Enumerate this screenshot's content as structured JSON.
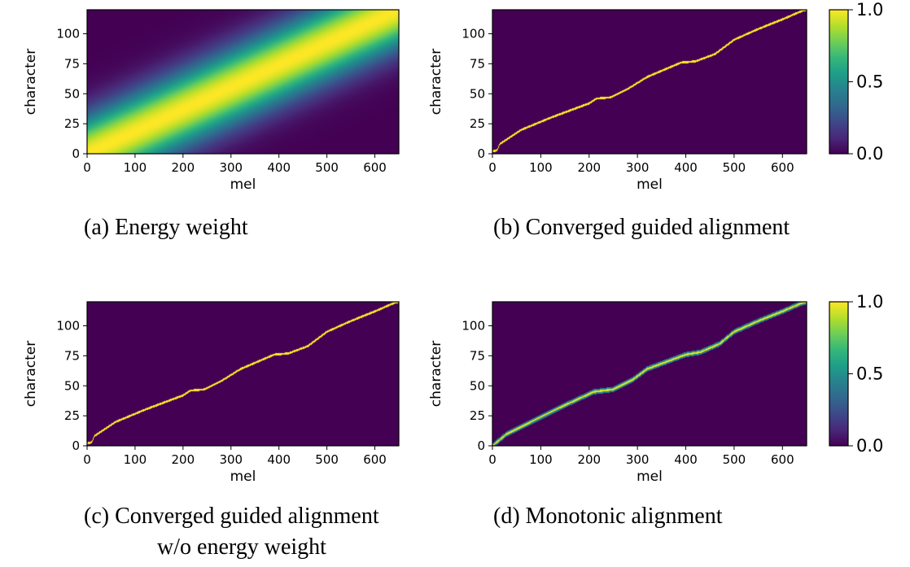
{
  "chart_data": [
    {
      "type": "heatmap",
      "id": "a",
      "caption": "(a) Energy weight",
      "caption_line2": "",
      "xlabel": "mel",
      "ylabel": "character",
      "xlim": [
        0,
        650
      ],
      "ylim": [
        0,
        120
      ],
      "xticks": [
        0,
        100,
        200,
        300,
        400,
        500,
        600
      ],
      "yticks": [
        0,
        25,
        50,
        75,
        100
      ],
      "pattern": "diagonal_band",
      "band_sigma_chars": 22,
      "value_range": [
        0.0,
        1.0
      ]
    },
    {
      "type": "heatmap",
      "id": "b",
      "caption": "(b) Converged guided alignment",
      "caption_line2": "",
      "xlabel": "mel",
      "ylabel": "character",
      "xlim": [
        0,
        650
      ],
      "ylim": [
        0,
        120
      ],
      "xticks": [
        0,
        100,
        200,
        300,
        400,
        500,
        600
      ],
      "yticks": [
        0,
        25,
        50,
        75,
        100
      ],
      "pattern": "alignment_path",
      "path": [
        [
          0,
          2
        ],
        [
          10,
          3
        ],
        [
          15,
          8
        ],
        [
          60,
          20
        ],
        [
          120,
          30
        ],
        [
          200,
          42
        ],
        [
          215,
          46
        ],
        [
          245,
          47
        ],
        [
          280,
          54
        ],
        [
          320,
          64
        ],
        [
          355,
          70
        ],
        [
          390,
          76
        ],
        [
          420,
          77
        ],
        [
          460,
          83
        ],
        [
          500,
          95
        ],
        [
          550,
          104
        ],
        [
          600,
          112
        ],
        [
          640,
          119
        ],
        [
          650,
          120
        ]
      ],
      "value_range": [
        0.0,
        1.0
      ]
    },
    {
      "type": "heatmap",
      "id": "c",
      "caption": "(c) Converged guided alignment",
      "caption_line2": "w/o energy weight",
      "xlabel": "mel",
      "ylabel": "character",
      "xlim": [
        0,
        650
      ],
      "ylim": [
        0,
        120
      ],
      "xticks": [
        0,
        100,
        200,
        300,
        400,
        500,
        600
      ],
      "yticks": [
        0,
        25,
        50,
        75,
        100
      ],
      "pattern": "alignment_path",
      "path": [
        [
          0,
          2
        ],
        [
          10,
          3
        ],
        [
          15,
          8
        ],
        [
          60,
          20
        ],
        [
          120,
          30
        ],
        [
          200,
          42
        ],
        [
          215,
          46
        ],
        [
          245,
          47
        ],
        [
          280,
          54
        ],
        [
          320,
          64
        ],
        [
          355,
          70
        ],
        [
          390,
          76
        ],
        [
          420,
          77
        ],
        [
          460,
          83
        ],
        [
          500,
          95
        ],
        [
          550,
          104
        ],
        [
          600,
          112
        ],
        [
          640,
          119
        ],
        [
          650,
          120
        ]
      ],
      "value_range": [
        0.0,
        1.0
      ]
    },
    {
      "type": "heatmap",
      "id": "d",
      "caption": "(d) Monotonic alignment",
      "caption_line2": "",
      "xlabel": "mel",
      "ylabel": "character",
      "xlim": [
        0,
        650
      ],
      "ylim": [
        0,
        120
      ],
      "xticks": [
        0,
        100,
        200,
        300,
        400,
        500,
        600
      ],
      "yticks": [
        0,
        25,
        50,
        75,
        100
      ],
      "pattern": "alignment_path_soft",
      "path": [
        [
          0,
          0
        ],
        [
          30,
          10
        ],
        [
          80,
          20
        ],
        [
          140,
          32
        ],
        [
          210,
          45
        ],
        [
          250,
          47
        ],
        [
          290,
          55
        ],
        [
          320,
          64
        ],
        [
          360,
          70
        ],
        [
          400,
          76
        ],
        [
          430,
          78
        ],
        [
          470,
          85
        ],
        [
          500,
          95
        ],
        [
          550,
          104
        ],
        [
          600,
          112
        ],
        [
          640,
          119
        ],
        [
          650,
          120
        ]
      ],
      "value_range": [
        0.0,
        1.0
      ]
    }
  ],
  "colorbars": [
    {
      "id": "top",
      "ticks": [
        "1.0",
        "0.5",
        "0.0"
      ],
      "min": 0.0,
      "max": 1.0
    },
    {
      "id": "bottom",
      "ticks": [
        "1.0",
        "0.5",
        "0.0"
      ],
      "min": 0.0,
      "max": 1.0
    }
  ],
  "colors": {
    "viridis": [
      "#440154",
      "#482878",
      "#3e4989",
      "#31688e",
      "#26828e",
      "#1f9e89",
      "#35b779",
      "#6ece58",
      "#b5de2b",
      "#fde725"
    ],
    "background": "#440154",
    "path": "#fde725"
  }
}
